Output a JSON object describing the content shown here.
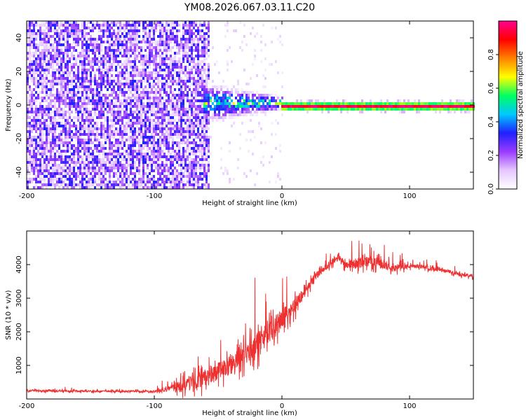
{
  "chart_data": [
    {
      "type": "heatmap",
      "title": "YM08.2026.067.03.11.C20",
      "xlabel": "Height of straight line (km)",
      "ylabel": "Frequency (Hz)",
      "xlim": [
        -200,
        150
      ],
      "ylim": [
        -50,
        50
      ],
      "x_ticks": [
        -200,
        -100,
        0,
        100
      ],
      "y_ticks": [
        -40,
        -20,
        0,
        20,
        40
      ],
      "colorbar": {
        "label": "Normalized spectral amplitude",
        "range": [
          0,
          1
        ],
        "ticks": [
          "0.0",
          "0.2",
          "0.4",
          "0.6",
          "0.8"
        ],
        "colors": [
          "#ffffff",
          "#e6c8ff",
          "#9a3cff",
          "#2020ff",
          "#00c8ff",
          "#00ff60",
          "#ffff00",
          "#ff8000",
          "#ff0000",
          "#ff0090"
        ]
      },
      "regions": [
        {
          "name": "noise",
          "x_range": [
            -200,
            -58
          ],
          "freq_range": [
            -50,
            50
          ],
          "amplitude": 0.25
        },
        {
          "name": "sparse-scatter",
          "x_range": [
            -58,
            0
          ],
          "freq_range": [
            -50,
            50
          ],
          "amplitude": 0.08
        },
        {
          "name": "signal-onset",
          "x_range": [
            -62,
            0
          ],
          "freq_range": [
            -8,
            12
          ],
          "amplitude": 0.45
        },
        {
          "name": "carrier-line",
          "x_range": [
            0,
            150
          ],
          "freq_range": [
            -1.5,
            1.5
          ],
          "amplitude": 0.95
        }
      ]
    },
    {
      "type": "line",
      "xlabel": "Height of straight line (km)",
      "ylabel": "SNR (10 * v/v)",
      "xlim": [
        -200,
        150
      ],
      "ylim": [
        0,
        5000
      ],
      "x_ticks": [
        -200,
        -100,
        0,
        100
      ],
      "y_ticks": [
        1000,
        2000,
        3000,
        4000
      ],
      "series": [
        {
          "name": "SNR",
          "color": "#ee3030",
          "x": [
            -200,
            -150,
            -100,
            -90,
            -80,
            -70,
            -60,
            -50,
            -40,
            -30,
            -20,
            -10,
            0,
            10,
            20,
            30,
            40,
            45,
            50,
            60,
            70,
            80,
            90,
            100,
            110,
            120,
            130,
            140,
            150
          ],
          "mean": [
            250,
            230,
            230,
            280,
            380,
            500,
            650,
            800,
            1000,
            1300,
            1600,
            2000,
            2400,
            2800,
            3300,
            3800,
            4100,
            4200,
            4000,
            4050,
            4100,
            4000,
            3900,
            3950,
            3950,
            3850,
            3800,
            3700,
            3650
          ],
          "spread": [
            60,
            60,
            60,
            150,
            450,
            500,
            550,
            600,
            650,
            700,
            800,
            700,
            600,
            500,
            300,
            200,
            200,
            200,
            250,
            350,
            350,
            300,
            250,
            150,
            120,
            120,
            120,
            120,
            120
          ]
        }
      ]
    }
  ]
}
